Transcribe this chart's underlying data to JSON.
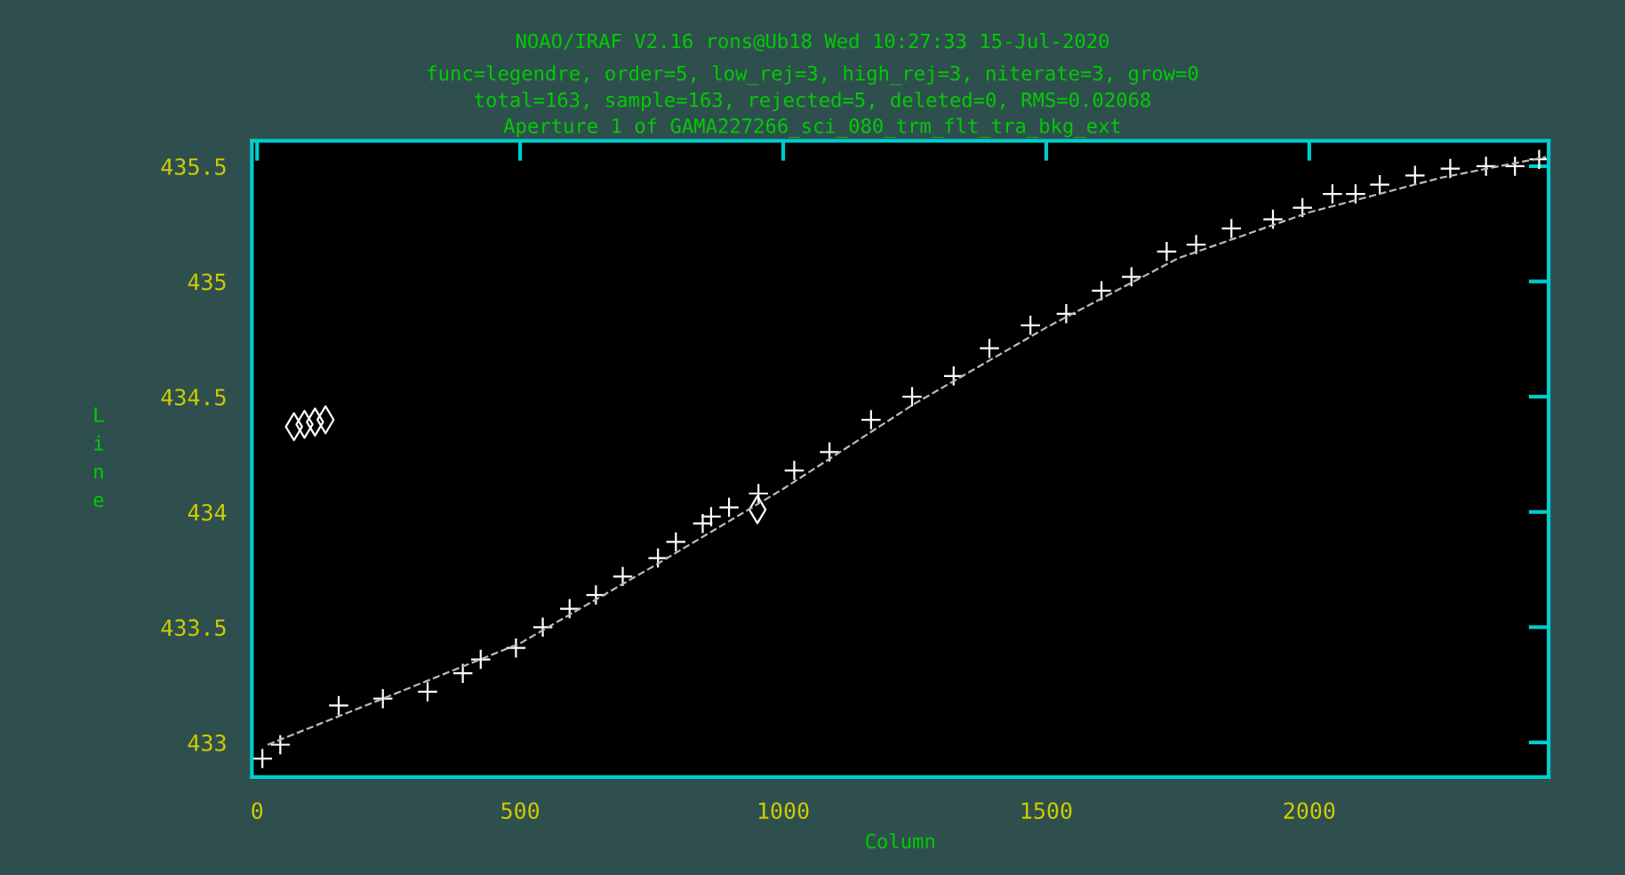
{
  "chart_data": {
    "type": "scatter",
    "title": "NOAO/IRAF V2.16 rons@Ub18 Wed 10:27:33 15-Jul-2020",
    "subtitle": "func=legendre, order=5, low_rej=3, high_rej=3, niterate=3, grow=0\ntotal=163, sample=163, rejected=5, deleted=0, RMS=0.02068\nAperture 1 of GAMA227266_sci_080_trm_flt_tra_bkg_ext",
    "xlabel": "Column",
    "ylabel": "Line",
    "xlim": [
      -10,
      2455
    ],
    "ylim": [
      432.85,
      435.61
    ],
    "xticks": [
      0,
      500,
      1000,
      1500,
      2000
    ],
    "yticks": [
      433,
      433.5,
      434,
      434.5,
      435,
      435.5
    ],
    "grid": false,
    "legend": false,
    "series": [
      {
        "marker": "cross",
        "color": "#ffffff",
        "x": [
          10,
          44,
          155,
          239,
          324,
          391,
          425,
          492,
          543,
          594,
          644,
          695,
          762,
          796,
          847,
          863,
          897,
          953,
          1021,
          1088,
          1167,
          1245,
          1324,
          1392,
          1470,
          1538,
          1605,
          1662,
          1729,
          1785,
          1852,
          1931,
          1987,
          2044,
          2088,
          2134,
          2201,
          2268,
          2336,
          2391,
          2437
        ],
        "values": [
          432.93,
          432.99,
          433.16,
          433.19,
          433.22,
          433.3,
          433.36,
          433.41,
          433.5,
          433.58,
          433.64,
          433.72,
          433.8,
          433.87,
          433.95,
          433.98,
          434.02,
          434.08,
          434.18,
          434.26,
          434.4,
          434.5,
          434.59,
          434.71,
          434.81,
          434.86,
          434.96,
          435.02,
          435.13,
          435.16,
          435.23,
          435.27,
          435.32,
          435.38,
          435.38,
          435.42,
          435.46,
          435.49,
          435.5,
          435.5,
          435.53
        ]
      },
      {
        "marker": "diamond",
        "color": "#ffffff",
        "x": [
          70,
          90,
          110,
          130,
          951
        ],
        "values": [
          434.37,
          434.38,
          434.39,
          434.4,
          434.01
        ]
      },
      {
        "type": "line",
        "marker": "none",
        "line_style": "dashed",
        "color": "#bbbbbb",
        "x": [
          20,
          250,
          500,
          750,
          1000,
          1250,
          1500,
          1750,
          2000,
          2250,
          2450
        ],
        "values": [
          432.99,
          433.2,
          433.43,
          433.76,
          434.1,
          434.47,
          434.8,
          435.1,
          435.3,
          435.45,
          435.54
        ]
      }
    ]
  }
}
